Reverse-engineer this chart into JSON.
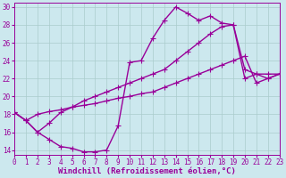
{
  "xlabel": "Windchill (Refroidissement éolien,°C)",
  "ylabel": "",
  "background_color": "#cce8ee",
  "grid_color": "#aacccc",
  "line_color": "#990099",
  "xlim": [
    0,
    23
  ],
  "ylim": [
    13.5,
    30.5
  ],
  "xticks": [
    0,
    1,
    2,
    3,
    4,
    5,
    6,
    7,
    8,
    9,
    10,
    11,
    12,
    13,
    14,
    15,
    16,
    17,
    18,
    19,
    20,
    21,
    22,
    23
  ],
  "yticks": [
    14,
    16,
    18,
    20,
    22,
    24,
    26,
    28,
    30
  ],
  "curve1_x": [
    0,
    1,
    2,
    3,
    4,
    5,
    6,
    7,
    8,
    9,
    10,
    11,
    12,
    13,
    14,
    15,
    16,
    17,
    18,
    19,
    20,
    21,
    22,
    23
  ],
  "curve1_y": [
    18.2,
    17.3,
    16.0,
    15.2,
    14.4,
    14.2,
    13.8,
    13.8,
    14.0,
    16.7,
    23.8,
    24.0,
    26.5,
    28.5,
    30.0,
    29.3,
    28.5,
    29.0,
    28.2,
    28.0,
    23.0,
    22.5,
    22.5,
    22.5
  ],
  "curve2_x": [
    0,
    1,
    2,
    3,
    4,
    5,
    6,
    7,
    8,
    9,
    10,
    11,
    12,
    13,
    14,
    15,
    16,
    17,
    18,
    19,
    20,
    21,
    22,
    23
  ],
  "curve2_y": [
    18.2,
    17.3,
    18.0,
    18.3,
    18.5,
    18.8,
    19.0,
    19.2,
    19.5,
    19.8,
    20.0,
    20.3,
    20.5,
    21.0,
    21.5,
    22.0,
    22.5,
    23.0,
    23.5,
    24.0,
    24.5,
    21.5,
    22.0,
    22.5
  ],
  "curve3_x": [
    0,
    1,
    2,
    3,
    4,
    5,
    6,
    7,
    8,
    9,
    10,
    11,
    12,
    13,
    14,
    15,
    16,
    17,
    18,
    19,
    20,
    21,
    22,
    23
  ],
  "curve3_y": [
    18.2,
    17.3,
    16.0,
    17.0,
    18.2,
    18.8,
    19.5,
    20.0,
    20.5,
    21.0,
    21.5,
    22.0,
    22.5,
    23.0,
    24.0,
    25.0,
    26.0,
    27.0,
    27.8,
    28.0,
    22.0,
    22.5,
    22.0,
    22.5
  ],
  "marker_size": 3,
  "line_width": 1.0,
  "tick_fontsize": 5.5,
  "xlabel_fontsize": 6.5
}
